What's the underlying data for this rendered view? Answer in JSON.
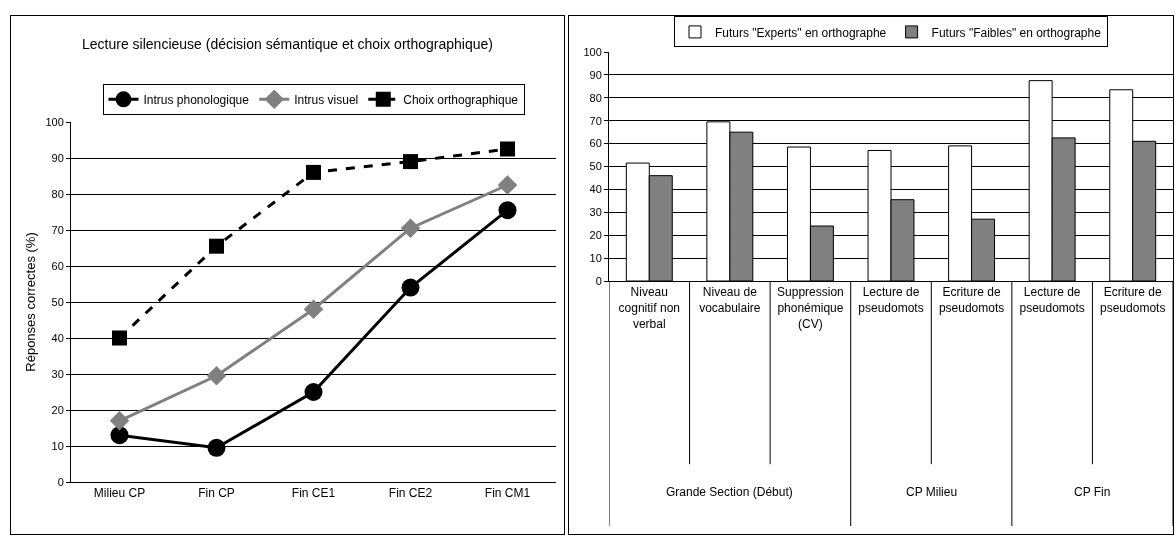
{
  "chart_data": [
    {
      "type": "line",
      "title": "Lecture silencieuse (décision sémantique et choix orthographique)",
      "ylabel": "Réponses correctes (%)",
      "categories": [
        "Milieu CP",
        "Fin CP",
        "Fin CE1",
        "Fin CE2",
        "Fin CM1"
      ],
      "series": [
        {
          "name": "Intrus phonologique",
          "color": "#000000",
          "marker": "circle",
          "line_style": "solid",
          "values": [
            13,
            9.5,
            25,
            54,
            75.5
          ]
        },
        {
          "name": "Intrus visuel",
          "color": "#808080",
          "marker": "diamond",
          "line_style": "solid",
          "values": [
            17,
            29.5,
            48,
            70.5,
            82.5
          ]
        },
        {
          "name": "Choix orthographique",
          "color": "#000000",
          "marker": "square",
          "line_style": "dashed",
          "values": [
            40,
            65.5,
            86,
            89,
            92.5
          ]
        }
      ],
      "ylim": [
        0,
        100
      ],
      "yticks": [
        0,
        10,
        20,
        30,
        40,
        50,
        60,
        70,
        80,
        90,
        100
      ],
      "grid": "y",
      "legend": "top"
    },
    {
      "type": "bar",
      "categories": [
        "Niveau cognitif non verbal",
        "Niveau de vocabulaire",
        "Suppression phonémique (CV)",
        "Lecture de pseudomots",
        "Ecriture de pseudomots",
        "Lecture de pseudomots",
        "Ecriture de pseudomots"
      ],
      "series": [
        {
          "name": "Futurs \"Experts\" en orthographe",
          "color": "#ffffff",
          "values": [
            51.5,
            69.5,
            58.5,
            57,
            59,
            87.5,
            83.5
          ]
        },
        {
          "name": "Futurs \"Faibles\" en orthographe",
          "color": "#808080",
          "values": [
            46,
            65,
            24,
            35.5,
            27,
            62.5,
            61
          ]
        }
      ],
      "annotations": [
        "Grande Section (Début)",
        "CP Milieu",
        "CP Fin"
      ],
      "ylim": [
        0,
        100
      ],
      "yticks": [
        0,
        10,
        20,
        30,
        40,
        50,
        60,
        70,
        80,
        90,
        100
      ],
      "grid": "y",
      "legend": "top"
    }
  ]
}
